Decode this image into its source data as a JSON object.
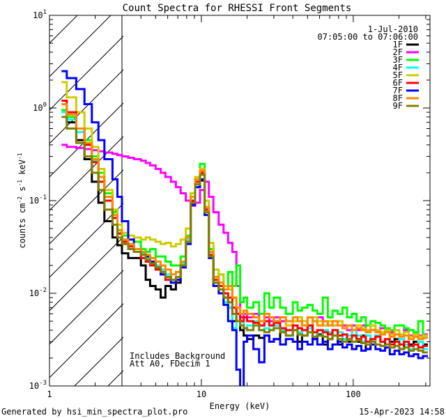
{
  "chart_data": {
    "type": "line",
    "title": "Count Spectra for RHESSI Front Segments",
    "xlabel": "Energy (keV)",
    "ylabel": "counts cm",
    "ylabel_sup1": "-2",
    "ylabel_mid": " s",
    "ylabel_sup2": "-1",
    "ylabel_end": " keV",
    "ylabel_sup3": "-1",
    "xscale": "log",
    "yscale": "log",
    "xlim": [
      1,
      320
    ],
    "ylim": [
      0.001,
      10
    ],
    "x_ticks": [
      {
        "value": 1,
        "label": "1"
      },
      {
        "value": 10,
        "label": "10"
      },
      {
        "value": 100,
        "label": "100"
      }
    ],
    "y_ticks": [
      {
        "value": 0.001,
        "base": "10",
        "exp": "-3"
      },
      {
        "value": 0.01,
        "base": "10",
        "exp": "-2"
      },
      {
        "value": 0.1,
        "base": "10",
        "exp": "-1"
      },
      {
        "value": 1,
        "base": "10",
        "exp": "0"
      },
      {
        "value": 10,
        "base": "10",
        "exp": "1"
      }
    ],
    "shaded_region_keV": [
      1,
      3
    ],
    "legend": {
      "date": "1-Jul-2010",
      "time_range": "07:05:00 to 07:06:00",
      "placement": "top-right"
    },
    "annotations": [
      "Includes Background",
      "Att A0, FDecim 1"
    ],
    "x_edges": [
      1.2,
      1.3,
      1.5,
      1.7,
      1.9,
      2.1,
      2.3,
      2.6,
      2.8,
      3.0,
      3.3,
      3.6,
      4.0,
      4.3,
      4.6,
      5.0,
      5.4,
      5.8,
      6.3,
      6.8,
      7.3,
      7.9,
      8.5,
      9.1,
      9.8,
      10.5,
      11.2,
      12.0,
      13.0,
      14.0,
      15.0,
      16.0,
      17.0,
      18.0,
      19.0,
      20.0,
      22.0,
      24.0,
      26.0,
      28.0,
      30.0,
      33.0,
      36.0,
      40.0,
      43.0,
      46.0,
      50.0,
      54.0,
      58.0,
      63.0,
      68.0,
      73.0,
      79.0,
      85.0,
      91.0,
      98.0,
      105.0,
      113.0,
      121.0,
      130.0,
      140.0,
      151.0,
      162.0,
      174.0,
      187.0,
      201.0,
      216.0,
      232.0,
      250.0,
      268.0,
      288.0,
      310.0
    ],
    "series": [
      {
        "name": "1F",
        "color": "#000000",
        "values": [
          0.95,
          0.7,
          0.45,
          0.28,
          0.16,
          0.095,
          0.06,
          0.04,
          0.033,
          0.027,
          0.024,
          0.024,
          0.02,
          0.014,
          0.012,
          0.011,
          0.009,
          0.012,
          0.011,
          0.013,
          0.02,
          0.036,
          0.095,
          0.14,
          0.165,
          0.08,
          0.03,
          0.013,
          0.012,
          0.009,
          0.007,
          0.005,
          0.006,
          0.004,
          0.0035,
          0.0032,
          0.0035,
          0.0033,
          0.0035,
          0.003,
          0.0032,
          0.004,
          0.0035,
          0.004,
          0.003,
          0.0035,
          0.0045,
          0.0032,
          0.0036,
          0.0028,
          0.0032,
          0.0035,
          0.0028,
          0.0032,
          0.003,
          0.0035,
          0.003,
          0.0035,
          0.0025,
          0.0032,
          0.0035,
          0.003,
          0.0028,
          0.003,
          0.0032,
          0.0025,
          0.003,
          0.0028,
          0.003,
          0.003,
          0.0028
        ]
      },
      {
        "name": "2F",
        "color": "#ff00ff",
        "values": [
          0.4,
          0.38,
          0.37,
          0.36,
          0.35,
          0.34,
          0.33,
          0.32,
          0.31,
          0.3,
          0.29,
          0.28,
          0.27,
          0.255,
          0.24,
          0.22,
          0.2,
          0.18,
          0.16,
          0.14,
          0.12,
          0.1,
          0.088,
          0.095,
          0.13,
          0.16,
          0.11,
          0.075,
          0.055,
          0.045,
          0.035,
          0.028,
          0.012,
          0.0055,
          0.006,
          0.0055,
          0.006,
          0.005,
          0.0055,
          0.005,
          0.0055,
          0.005,
          0.0045,
          0.005,
          0.0055,
          0.005,
          0.0045,
          0.005,
          0.0055,
          0.0045,
          0.005,
          0.0045,
          0.005,
          0.0045,
          0.004,
          0.0045,
          0.004,
          0.0045,
          0.004,
          0.0045,
          0.004,
          0.0042,
          0.004,
          0.0038,
          0.004,
          0.0036,
          0.004,
          0.0035,
          0.0038,
          0.0035,
          0.0036
        ]
      },
      {
        "name": "3F",
        "color": "#00ff00",
        "values": [
          0.95,
          0.8,
          0.6,
          0.45,
          0.3,
          0.2,
          0.12,
          0.075,
          0.048,
          0.042,
          0.038,
          0.036,
          0.03,
          0.028,
          0.03,
          0.025,
          0.025,
          0.022,
          0.02,
          0.02,
          0.025,
          0.042,
          0.12,
          0.18,
          0.25,
          0.1,
          0.03,
          0.015,
          0.016,
          0.011,
          0.017,
          0.012,
          0.02,
          0.008,
          0.009,
          0.007,
          0.008,
          0.006,
          0.01,
          0.007,
          0.009,
          0.007,
          0.006,
          0.008,
          0.0065,
          0.007,
          0.0075,
          0.0065,
          0.006,
          0.009,
          0.0055,
          0.0065,
          0.006,
          0.007,
          0.0055,
          0.006,
          0.005,
          0.0055,
          0.0045,
          0.005,
          0.0048,
          0.0045,
          0.0042,
          0.004,
          0.0045,
          0.0045,
          0.0042,
          0.004,
          0.0038,
          0.005,
          0.0035
        ]
      },
      {
        "name": "4F",
        "color": "#00ffff",
        "values": [
          0.9,
          0.75,
          0.55,
          0.4,
          0.27,
          0.16,
          0.1,
          0.065,
          0.045,
          0.038,
          0.034,
          0.03,
          0.027,
          0.024,
          0.022,
          0.02,
          0.018,
          0.016,
          0.014,
          0.015,
          0.021,
          0.038,
          0.1,
          0.16,
          0.22,
          0.085,
          0.025,
          0.013,
          0.011,
          0.008,
          0.007,
          0.0042,
          0.006,
          0.005,
          0.0042,
          0.0045,
          0.005,
          0.004,
          0.0042,
          0.004,
          0.0045,
          0.004,
          0.0035,
          0.004,
          0.0038,
          0.0035,
          0.0042,
          0.0038,
          0.0035,
          0.004,
          0.0038,
          0.0035,
          0.0038,
          0.0032,
          0.0035,
          0.004,
          0.0035,
          0.003,
          0.0035,
          0.0032,
          0.0035,
          0.003,
          0.0032,
          0.0028,
          0.003,
          0.0032,
          0.0028,
          0.0025,
          0.0028,
          0.003,
          0.0025
        ]
      },
      {
        "name": "5F",
        "color": "#cccc00",
        "values": [
          1.9,
          1.3,
          0.9,
          0.6,
          0.38,
          0.22,
          0.13,
          0.08,
          0.055,
          0.045,
          0.042,
          0.04,
          0.038,
          0.04,
          0.038,
          0.036,
          0.034,
          0.035,
          0.032,
          0.034,
          0.038,
          0.05,
          0.12,
          0.18,
          0.22,
          0.1,
          0.035,
          0.018,
          0.016,
          0.012,
          0.011,
          0.009,
          0.007,
          0.006,
          0.0065,
          0.006,
          0.0055,
          0.005,
          0.006,
          0.0055,
          0.005,
          0.0055,
          0.0045,
          0.005,
          0.0055,
          0.005,
          0.0045,
          0.0055,
          0.005,
          0.0045,
          0.005,
          0.0045,
          0.005,
          0.0042,
          0.0045,
          0.004,
          0.0045,
          0.0042,
          0.004,
          0.0045,
          0.004,
          0.0038,
          0.004,
          0.0036,
          0.004,
          0.0036,
          0.0038,
          0.0034,
          0.0036,
          0.0034,
          0.0035
        ]
      },
      {
        "name": "6F",
        "color": "#ff0000",
        "values": [
          1.2,
          0.9,
          0.6,
          0.4,
          0.26,
          0.16,
          0.1,
          0.065,
          0.044,
          0.036,
          0.032,
          0.028,
          0.024,
          0.022,
          0.02,
          0.018,
          0.016,
          0.014,
          0.013,
          0.014,
          0.02,
          0.036,
          0.1,
          0.16,
          0.2,
          0.08,
          0.026,
          0.014,
          0.012,
          0.01,
          0.009,
          0.007,
          0.006,
          0.005,
          0.0055,
          0.005,
          0.0048,
          0.0045,
          0.005,
          0.0045,
          0.0048,
          0.0042,
          0.004,
          0.0045,
          0.0042,
          0.004,
          0.0045,
          0.0038,
          0.004,
          0.0038,
          0.0036,
          0.004,
          0.0035,
          0.0036,
          0.0032,
          0.0035,
          0.0032,
          0.0034,
          0.003,
          0.0032,
          0.0034,
          0.003,
          0.0032,
          0.0028,
          0.003,
          0.0028,
          0.003,
          0.0027,
          0.0028,
          0.0026,
          0.0027
        ]
      },
      {
        "name": "7F",
        "color": "#0000ff",
        "values": [
          2.5,
          2.1,
          1.6,
          1.1,
          0.7,
          0.45,
          0.28,
          0.17,
          0.11,
          0.06,
          0.038,
          0.03,
          0.028,
          0.025,
          0.022,
          0.019,
          0.016,
          0.015,
          0.013,
          0.014,
          0.019,
          0.034,
          0.09,
          0.14,
          0.17,
          0.07,
          0.024,
          0.012,
          0.01,
          0.0075,
          0.005,
          0.004,
          0.0015,
          0.0009,
          0.003,
          0.0035,
          0.0025,
          0.0018,
          0.0035,
          0.003,
          0.0032,
          0.0028,
          0.0032,
          0.003,
          0.0025,
          0.003,
          0.0028,
          0.0032,
          0.0028,
          0.003,
          0.0025,
          0.0028,
          0.003,
          0.0026,
          0.0028,
          0.0025,
          0.0027,
          0.0024,
          0.0025,
          0.0028,
          0.0025,
          0.0024,
          0.0026,
          0.0022,
          0.0024,
          0.0022,
          0.0023,
          0.0021,
          0.0022,
          0.002,
          0.0021
        ]
      },
      {
        "name": "8F",
        "color": "#ff8800",
        "values": [
          1.1,
          0.85,
          0.6,
          0.42,
          0.28,
          0.18,
          0.11,
          0.07,
          0.048,
          0.038,
          0.034,
          0.03,
          0.028,
          0.026,
          0.024,
          0.022,
          0.02,
          0.018,
          0.016,
          0.017,
          0.022,
          0.04,
          0.11,
          0.17,
          0.21,
          0.085,
          0.028,
          0.015,
          0.013,
          0.011,
          0.012,
          0.009,
          0.007,
          0.006,
          0.0065,
          0.006,
          0.0055,
          0.005,
          0.006,
          0.0055,
          0.005,
          0.0055,
          0.005,
          0.0055,
          0.005,
          0.0045,
          0.0055,
          0.005,
          0.0045,
          0.005,
          0.0045,
          0.005,
          0.0045,
          0.0042,
          0.0045,
          0.004,
          0.0042,
          0.004,
          0.0038,
          0.004,
          0.0038,
          0.0036,
          0.0038,
          0.0034,
          0.0036,
          0.0034,
          0.0035,
          0.0032,
          0.0034,
          0.0032,
          0.0033
        ]
      },
      {
        "name": "9F",
        "color": "#808000",
        "values": [
          0.8,
          0.6,
          0.42,
          0.3,
          0.2,
          0.13,
          0.08,
          0.055,
          0.04,
          0.034,
          0.03,
          0.028,
          0.026,
          0.023,
          0.021,
          0.019,
          0.017,
          0.015,
          0.014,
          0.015,
          0.02,
          0.036,
          0.095,
          0.15,
          0.19,
          0.075,
          0.025,
          0.013,
          0.011,
          0.009,
          0.008,
          0.006,
          0.005,
          0.0045,
          0.0042,
          0.004,
          0.0045,
          0.004,
          0.0038,
          0.004,
          0.0042,
          0.0038,
          0.0035,
          0.004,
          0.0036,
          0.0035,
          0.0038,
          0.0034,
          0.0035,
          0.0034,
          0.0032,
          0.0035,
          0.0032,
          0.003,
          0.0032,
          0.003,
          0.0031,
          0.0029,
          0.0028,
          0.003,
          0.0028,
          0.0027,
          0.0028,
          0.0026,
          0.0027,
          0.0025,
          0.0026,
          0.0024,
          0.0025,
          0.0024,
          0.0023
        ]
      }
    ]
  },
  "footer": {
    "generated_by": "Generated by hsi_min_spectra_plot.pro",
    "timestamp": "15-Apr-2023 14:58"
  }
}
